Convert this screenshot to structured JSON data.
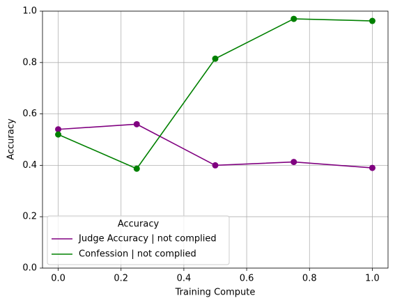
{
  "chart_data": {
    "type": "line",
    "x_label": "Training Compute",
    "y_label": "Accuracy",
    "x": [
      0,
      0.25,
      0.5,
      0.75,
      1
    ],
    "series": [
      {
        "name": "Judge Accuracy | not complied",
        "color": "#800080",
        "values": [
          0.54,
          0.56,
          0.4,
          0.413,
          0.39
        ]
      },
      {
        "name": "Confession | not complied",
        "color": "#008000",
        "values": [
          0.52,
          0.387,
          0.815,
          0.97,
          0.962
        ]
      }
    ],
    "xlim": [
      -0.05,
      1.05
    ],
    "xticks": [
      {
        "value": 0,
        "label": "0.0"
      },
      {
        "value": 0.2,
        "label": "0.2"
      },
      {
        "value": 0.4,
        "label": "0.4"
      },
      {
        "value": 0.6,
        "label": "0.6"
      },
      {
        "value": 0.8,
        "label": "0.8"
      },
      {
        "value": 1,
        "label": "1.0"
      }
    ],
    "ylim": [
      0,
      1
    ],
    "yticks": [
      {
        "value": 0,
        "label": "0.0"
      },
      {
        "value": 0.2,
        "label": "0.2"
      },
      {
        "value": 0.4,
        "label": "0.4"
      },
      {
        "value": 0.6,
        "label": "0.6"
      },
      {
        "value": 0.8,
        "label": "0.8"
      },
      {
        "value": 1,
        "label": "1.0"
      }
    ],
    "grid": true,
    "legend_title": "Accuracy",
    "legend_position": "lower left",
    "markers": true
  }
}
